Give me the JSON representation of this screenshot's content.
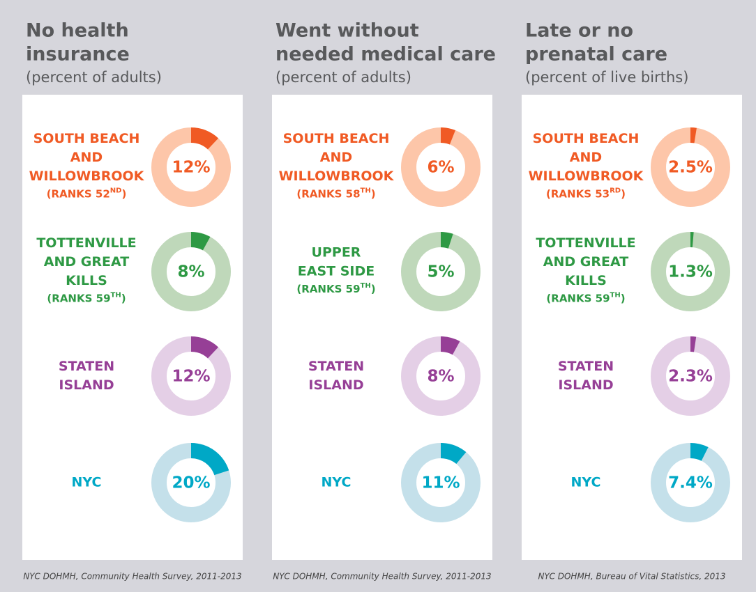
{
  "chart_data": [
    {
      "type": "donut",
      "title": [
        "No health",
        "insurance"
      ],
      "subtitle": "(percent of adults)",
      "source": "NYC DOHMH, Community Health Survey, 2011-2013",
      "series": [
        {
          "name": [
            "SOUTH BEACH",
            "AND",
            "WILLOWBROOK"
          ],
          "rank": [
            "(RANKS 52",
            "ND",
            ")"
          ],
          "value": 12,
          "value_label": "12%",
          "color": "#f05a24",
          "track_color": "#fdc6a9"
        },
        {
          "name": [
            "TOTTENVILLE",
            "AND GREAT",
            "KILLS"
          ],
          "rank": [
            "(RANKS 59",
            "TH",
            ")"
          ],
          "value": 8,
          "value_label": "8%",
          "color": "#2e9944",
          "track_color": "#bfd8ba"
        },
        {
          "name": [
            "STATEN",
            "ISLAND"
          ],
          "value": 12,
          "value_label": "12%",
          "color": "#963f96",
          "track_color": "#e4cfe6"
        },
        {
          "name": [
            "NYC"
          ],
          "value": 20,
          "value_label": "20%",
          "color": "#00a8c6",
          "track_color": "#c4e0ea"
        }
      ]
    },
    {
      "type": "donut",
      "title": [
        "Went without",
        "needed medical care"
      ],
      "subtitle": "(percent of adults)",
      "source": "NYC DOHMH, Community Health Survey, 2011-2013",
      "series": [
        {
          "name": [
            "SOUTH BEACH",
            "AND",
            "WILLOWBROOK"
          ],
          "rank": [
            "(RANKS 58",
            "TH",
            ")"
          ],
          "value": 6,
          "value_label": "6%",
          "color": "#f05a24",
          "track_color": "#fdc6a9"
        },
        {
          "name": [
            "UPPER",
            "EAST SIDE"
          ],
          "rank": [
            "(RANKS 59",
            "TH",
            ")"
          ],
          "value": 5,
          "value_label": "5%",
          "color": "#2e9944",
          "track_color": "#bfd8ba"
        },
        {
          "name": [
            "STATEN",
            "ISLAND"
          ],
          "value": 8,
          "value_label": "8%",
          "color": "#963f96",
          "track_color": "#e4cfe6"
        },
        {
          "name": [
            "NYC"
          ],
          "value": 11,
          "value_label": "11%",
          "color": "#00a8c6",
          "track_color": "#c4e0ea"
        }
      ]
    },
    {
      "type": "donut",
      "title": [
        "Late or no",
        "prenatal care"
      ],
      "subtitle": "(percent of live births)",
      "source": "NYC DOHMH, Bureau of Vital Statistics, 2013",
      "series": [
        {
          "name": [
            "SOUTH BEACH",
            "AND",
            "WILLOWBROOK"
          ],
          "rank": [
            "(RANKS 53",
            "RD",
            ")"
          ],
          "value": 2.5,
          "value_label": "2.5%",
          "color": "#f05a24",
          "track_color": "#fdc6a9"
        },
        {
          "name": [
            "TOTTENVILLE",
            "AND GREAT",
            "KILLS"
          ],
          "rank": [
            "(RANKS 59",
            "TH",
            ")"
          ],
          "value": 1.3,
          "value_label": "1.3%",
          "color": "#2e9944",
          "track_color": "#bfd8ba"
        },
        {
          "name": [
            "STATEN",
            "ISLAND"
          ],
          "value": 2.3,
          "value_label": "2.3%",
          "color": "#963f96",
          "track_color": "#e4cfe6"
        },
        {
          "name": [
            "NYC"
          ],
          "value": 7.4,
          "value_label": "7.4%",
          "color": "#00a8c6",
          "track_color": "#c4e0ea"
        }
      ]
    }
  ]
}
